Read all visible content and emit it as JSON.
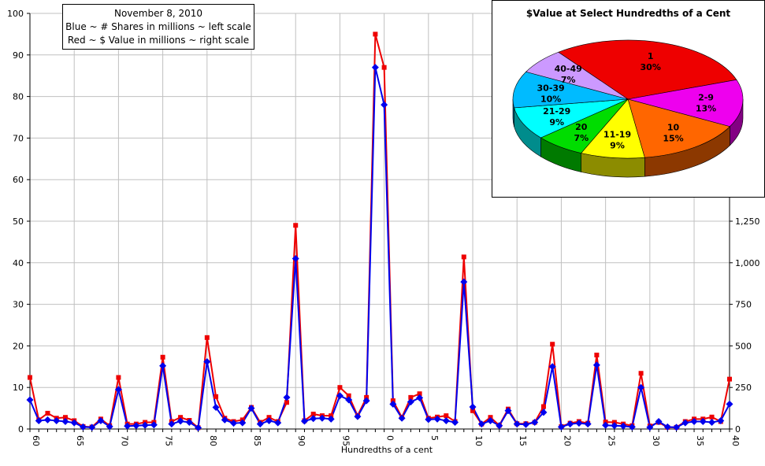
{
  "chart_data": [
    {
      "type": "line",
      "annotation": [
        "November 8, 2010",
        "Blue ~ # Shares in millions ~ left scale",
        "Red ~ $ Value in millions ~ right scale"
      ],
      "xlabel": "Hundredths of a cent",
      "x_ticks": [
        "60",
        "65",
        "70",
        "75",
        "80",
        "85",
        "90",
        "95",
        "0",
        "5",
        "10",
        "15",
        "20",
        "25",
        "30",
        "35",
        "40"
      ],
      "y_left": {
        "range": [
          0,
          100
        ],
        "ticks": [
          0,
          10,
          20,
          30,
          40,
          50,
          60,
          70,
          80,
          90,
          100
        ]
      },
      "y_right": {
        "range": [
          0,
          2500
        ],
        "ticks": [
          "0",
          "250",
          "500",
          "750",
          "1,000",
          "1,250"
        ]
      },
      "series": [
        {
          "color": "#0000ee",
          "marker": "diamond",
          "values": [
            7,
            2,
            2.2,
            2,
            1.8,
            1.5,
            0.5,
            0.4,
            2,
            0.6,
            9.5,
            0.7,
            0.8,
            0.9,
            1,
            15.2,
            1.2,
            1.9,
            1.6,
            0.3,
            16.2,
            5.2,
            2.2,
            1.4,
            1.5,
            5,
            1.2,
            2,
            1.5,
            7.6,
            41,
            1.9,
            2.5,
            2.6,
            2.4,
            8,
            7,
            3,
            6.8,
            87,
            78,
            6,
            2.6,
            6.5,
            7.5,
            2.3,
            2.4,
            2,
            1.6,
            35.4,
            5.3,
            1.2,
            2,
            0.8,
            4.4,
            1.2,
            1.1,
            1.6,
            4,
            15,
            0.5,
            1.2,
            1.4,
            1.2,
            15.4,
            0.9,
            0.8,
            0.7,
            0.5,
            10,
            0.4,
            1.8,
            0.5,
            0.4,
            1.5,
            1.8,
            1.8,
            1.6,
            2,
            6
          ]
        },
        {
          "color": "#ee0000",
          "marker": "square",
          "values": [
            310,
            55,
            95,
            65,
            70,
            50,
            15,
            12,
            60,
            20,
            310,
            30,
            30,
            40,
            40,
            432,
            45,
            70,
            52,
            8,
            550,
            195,
            65,
            45,
            55,
            130,
            40,
            70,
            45,
            160,
            1225,
            50,
            90,
            80,
            80,
            250,
            200,
            80,
            190,
            2375,
            2175,
            170,
            70,
            190,
            212,
            65,
            72,
            80,
            45,
            1035,
            110,
            30,
            70,
            22,
            120,
            32,
            32,
            40,
            135,
            510,
            15,
            35,
            45,
            35,
            445,
            42,
            40,
            30,
            20,
            335,
            18,
            40,
            10,
            10,
            45,
            60,
            60,
            72,
            45,
            300
          ]
        }
      ]
    },
    {
      "type": "pie",
      "title": "$Value at Select Hundredths of a Cent",
      "slices": [
        {
          "label": "1",
          "pct": "30%",
          "value": 30,
          "color": "#ee0000"
        },
        {
          "label": "2-9",
          "pct": "13%",
          "value": 13,
          "color": "#ee00ee"
        },
        {
          "label": "10",
          "pct": "15%",
          "value": 15,
          "color": "#ff6600"
        },
        {
          "label": "11-19",
          "pct": "9%",
          "value": 9,
          "color": "#ffff00"
        },
        {
          "label": "20",
          "pct": "7%",
          "value": 7,
          "color": "#00dd00"
        },
        {
          "label": "21-29",
          "pct": "9%",
          "value": 9,
          "color": "#00ffff"
        },
        {
          "label": "30-39",
          "pct": "10%",
          "value": 10,
          "color": "#00bbff"
        },
        {
          "label": "40-49",
          "pct": "7%",
          "value": 7,
          "color": "#cc99ff"
        }
      ]
    }
  ]
}
